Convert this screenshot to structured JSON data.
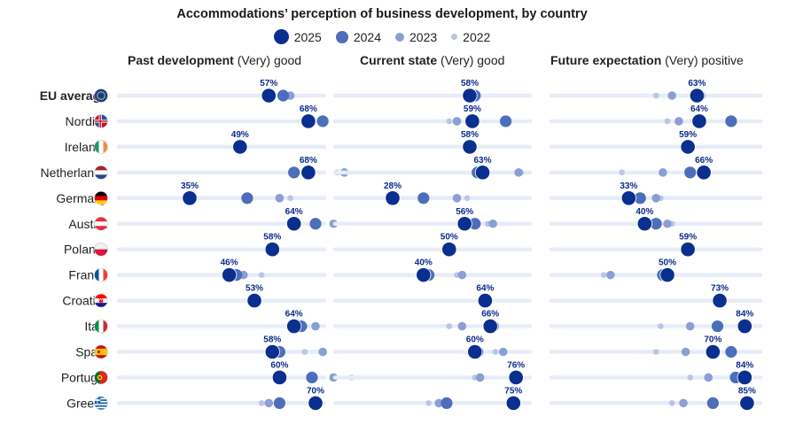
{
  "chart_data": {
    "type": "scatter",
    "title": "Accommodations’ perception of business development, by country",
    "series_styles": [
      {
        "name": "2025",
        "color": "#0a2f8f"
      },
      {
        "name": "2024",
        "color": "#4d6fba"
      },
      {
        "name": "2023",
        "color": "#8aa0d4"
      },
      {
        "name": "2022",
        "color": "#b9c6e6"
      }
    ],
    "panels": [
      {
        "title_bold": "Past development",
        "title_rest": " (Very) good"
      },
      {
        "title_bold": "Current state",
        "title_rest": " (Very) good"
      },
      {
        "title_bold": "Future expectation",
        "title_rest": " (Very) positive"
      }
    ],
    "rows": [
      {
        "label": "EU average",
        "bold": true,
        "flag": "eu-flag",
        "values": [
          [
            57,
            61,
            63,
            63
          ],
          [
            58,
            60,
            58,
            59
          ],
          [
            63,
            64,
            52,
            45
          ]
        ]
      },
      {
        "label": "Nordics",
        "flag": "nordics-flag",
        "values": [
          [
            68,
            72,
            72,
            67
          ],
          [
            59,
            72,
            53,
            50
          ],
          [
            64,
            78,
            55,
            50
          ]
        ]
      },
      {
        "label": "Ireland*",
        "flag": "ireland-flag",
        "values": [
          [
            49,
            null,
            null,
            null
          ],
          [
            58,
            null,
            null,
            null
          ],
          [
            59,
            null,
            null,
            null
          ]
        ]
      },
      {
        "label": "Netherlands",
        "flag": "netherlands-flag",
        "values": [
          [
            68,
            64,
            78,
            76
          ],
          [
            63,
            61,
            77,
            78
          ],
          [
            66,
            60,
            48,
            30
          ]
        ]
      },
      {
        "label": "Germany",
        "flag": "germany-flag",
        "values": [
          [
            35,
            51,
            60,
            63
          ],
          [
            28,
            40,
            53,
            57
          ],
          [
            33,
            38,
            45,
            47
          ]
        ]
      },
      {
        "label": "Austria",
        "flag": "austria-flag",
        "values": [
          [
            64,
            70,
            75,
            75
          ],
          [
            56,
            60,
            67,
            65
          ],
          [
            40,
            45,
            50,
            52
          ]
        ]
      },
      {
        "label": "Poland*",
        "flag": "poland-flag",
        "values": [
          [
            58,
            null,
            null,
            null
          ],
          [
            50,
            null,
            null,
            null
          ],
          [
            59,
            null,
            null,
            null
          ]
        ]
      },
      {
        "label": "France",
        "flag": "france-flag",
        "values": [
          [
            46,
            48,
            50,
            55
          ],
          [
            40,
            42,
            55,
            53
          ],
          [
            50,
            48,
            25,
            22
          ]
        ]
      },
      {
        "label": "Croatia*",
        "flag": "croatia-flag",
        "values": [
          [
            53,
            null,
            null,
            null
          ],
          [
            64,
            null,
            null,
            null
          ],
          [
            73,
            null,
            null,
            null
          ]
        ]
      },
      {
        "label": "Italy",
        "flag": "italy-flag",
        "values": [
          [
            64,
            66,
            70,
            67
          ],
          [
            66,
            67,
            55,
            50
          ],
          [
            84,
            72,
            60,
            47
          ]
        ]
      },
      {
        "label": "Spain",
        "flag": "spain-flag",
        "values": [
          [
            58,
            60,
            72,
            67
          ],
          [
            60,
            61,
            71,
            68
          ],
          [
            70,
            78,
            58,
            45
          ]
        ]
      },
      {
        "label": "Portugal",
        "flag": "portugal-flag",
        "values": [
          [
            60,
            69,
            75,
            80
          ],
          [
            76,
            76,
            62,
            60
          ],
          [
            84,
            80,
            68,
            60
          ]
        ]
      },
      {
        "label": "Greece",
        "flag": "greece-flag",
        "values": [
          [
            70,
            60,
            57,
            55
          ],
          [
            75,
            49,
            46,
            42
          ],
          [
            85,
            70,
            57,
            52
          ]
        ]
      }
    ]
  }
}
